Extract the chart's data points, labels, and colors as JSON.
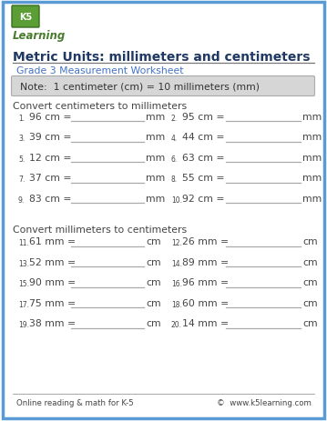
{
  "title": "Metric Units: millimeters and centimeters",
  "subtitle": "Grade 3 Measurement Worksheet",
  "note": "Note:  1 centimeter (cm) = 10 millimeters (mm)",
  "section1_label": "Convert centimeters to millimeters",
  "section2_label": "Convert millimeters to centimeters",
  "cm_to_mm": [
    {
      "num": "1.",
      "val": "96 cm =",
      "unit": "mm"
    },
    {
      "num": "2.",
      "val": "95 cm =",
      "unit": "mm"
    },
    {
      "num": "3.",
      "val": "39 cm =",
      "unit": "mm"
    },
    {
      "num": "4.",
      "val": "44 cm =",
      "unit": "mm"
    },
    {
      "num": "5.",
      "val": "12 cm =",
      "unit": "mm"
    },
    {
      "num": "6.",
      "val": "63 cm =",
      "unit": "mm"
    },
    {
      "num": "7.",
      "val": "37 cm =",
      "unit": "mm"
    },
    {
      "num": "8.",
      "val": "55 cm =",
      "unit": "mm"
    },
    {
      "num": "9.",
      "val": "83 cm =",
      "unit": "mm"
    },
    {
      "num": "10.",
      "val": "92 cm =",
      "unit": "mm"
    }
  ],
  "mm_to_cm": [
    {
      "num": "11.",
      "val": "61 mm =",
      "unit": "cm"
    },
    {
      "num": "12.",
      "val": "26 mm =",
      "unit": "cm"
    },
    {
      "num": "13.",
      "val": "52 mm =",
      "unit": "cm"
    },
    {
      "num": "14.",
      "val": "89 mm =",
      "unit": "cm"
    },
    {
      "num": "15.",
      "val": "90 mm =",
      "unit": "cm"
    },
    {
      "num": "16.",
      "val": "96 mm =",
      "unit": "cm"
    },
    {
      "num": "17.",
      "val": "75 mm =",
      "unit": "cm"
    },
    {
      "num": "18.",
      "val": "60 mm =",
      "unit": "cm"
    },
    {
      "num": "19.",
      "val": "38 mm =",
      "unit": "cm"
    },
    {
      "num": "20.",
      "val": "14 mm =",
      "unit": "cm"
    }
  ],
  "footer_left": "Online reading & math for K-5",
  "footer_right": "©  www.k5learning.com",
  "border_color": "#5b9bd5",
  "title_color": "#1f3864",
  "subtitle_color": "#4472c4",
  "note_bg": "#d6d6d6",
  "note_color": "#333333",
  "text_color": "#444444",
  "line_color": "#aaaaaa",
  "bg_color": "#ffffff",
  "logo_green": "#4a7c2f",
  "logo_box_bg": "#d0e8c0"
}
